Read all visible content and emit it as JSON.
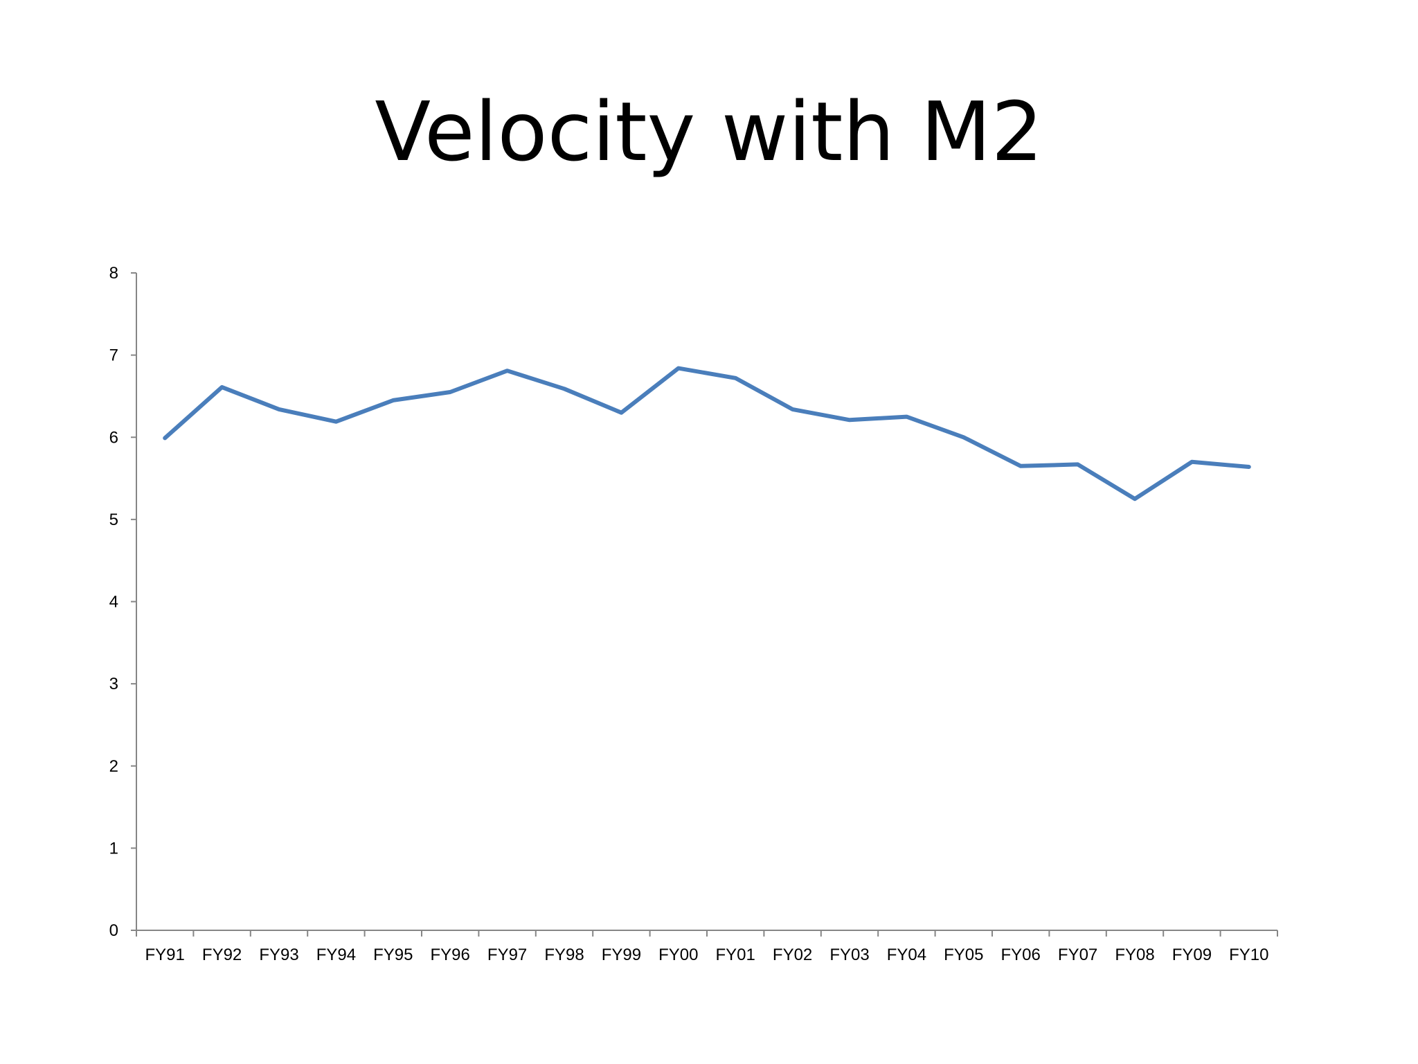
{
  "slide": {
    "title": "Velocity with M2"
  },
  "chart_data": {
    "type": "line",
    "title": "Velocity with M2",
    "xlabel": "",
    "ylabel": "",
    "categories": [
      "FY91",
      "FY92",
      "FY93",
      "FY94",
      "FY95",
      "FY96",
      "FY97",
      "FY98",
      "FY99",
      "FY00",
      "FY01",
      "FY02",
      "FY03",
      "FY04",
      "FY05",
      "FY06",
      "FY07",
      "FY08",
      "FY09",
      "FY10"
    ],
    "series": [
      {
        "values": [
          5.99,
          6.61,
          6.34,
          6.19,
          6.45,
          6.55,
          6.81,
          6.59,
          6.3,
          6.84,
          6.72,
          6.34,
          6.21,
          6.25,
          6.0,
          5.65,
          5.67,
          5.25,
          5.7,
          5.64
        ],
        "color": "#4a7ebb"
      }
    ],
    "ylim": [
      0,
      8
    ],
    "yticks": [
      0,
      1,
      2,
      3,
      4,
      5,
      6,
      7,
      8
    ],
    "grid": false,
    "legend": "none",
    "axis_color": "#868686"
  }
}
